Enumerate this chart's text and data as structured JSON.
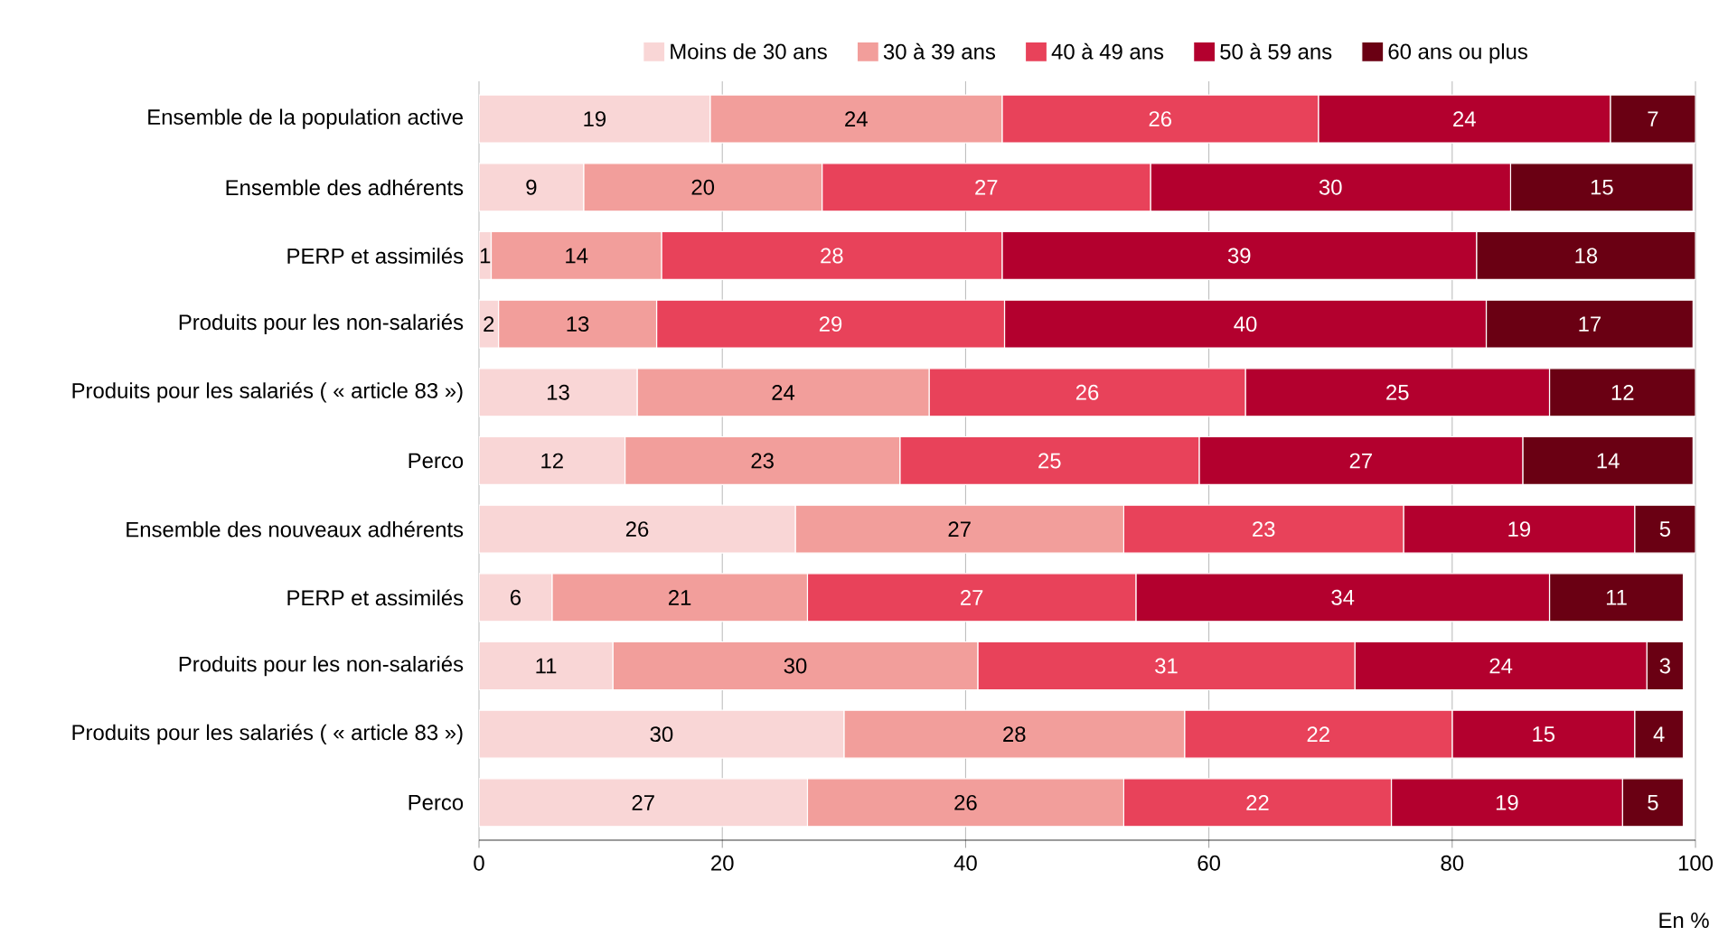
{
  "chart_data": {
    "type": "bar",
    "orientation": "horizontal",
    "stacked": true,
    "grid": "x",
    "legend": "top",
    "categories": [
      "Ensemble de la population active",
      "Ensemble des adhérents",
      "PERP et assimilés",
      "Produits pour les non-salariés",
      "Produits pour les salariés ( « article 83 »)",
      "Perco",
      "Ensemble des nouveaux adhérents",
      "PERP et assimilés",
      "Produits pour les non-salariés",
      "Produits pour les salariés ( « article 83 »)",
      "Perco"
    ],
    "series": [
      {
        "name": "Moins de 30 ans",
        "color": "#f9d6d6",
        "values": [
          19,
          8.6,
          1,
          1.6,
          13,
          12,
          26,
          6,
          11,
          30,
          27
        ],
        "value_labels": [
          "19",
          "9",
          "1",
          "2",
          "13",
          "12",
          "26",
          "6",
          "11",
          "30",
          "27"
        ]
      },
      {
        "name": "30 à 39 ans",
        "color": "#f29e9b",
        "values": [
          24,
          19.6,
          14,
          13,
          24,
          22.6,
          27,
          21,
          30,
          28,
          26
        ],
        "value_labels": [
          "24",
          "20",
          "14",
          "13",
          "24",
          "23",
          "27",
          "21",
          "30",
          "28",
          "26"
        ]
      },
      {
        "name": "40 à 49 ans",
        "color": "#e8425a",
        "values": [
          26,
          27,
          28,
          28.6,
          26,
          24.6,
          23,
          27,
          31,
          22,
          22
        ],
        "value_labels": [
          "26",
          "27",
          "28",
          "29",
          "26",
          "25",
          "23",
          "27",
          "31",
          "22",
          "22"
        ]
      },
      {
        "name": "50 à 59 ans",
        "color": "#b3002e",
        "values": [
          24,
          29.6,
          39,
          39.6,
          25,
          26.6,
          19,
          34,
          24,
          15,
          19
        ],
        "value_labels": [
          "24",
          "30",
          "39",
          "40",
          "25",
          "27",
          "19",
          "34",
          "24",
          "15",
          "19"
        ]
      },
      {
        "name": "60 ans ou plus",
        "color": "#6a0013",
        "values": [
          7,
          15,
          18,
          17,
          12,
          14,
          5,
          11,
          3,
          4,
          5
        ],
        "value_labels": [
          "7",
          "15",
          "18",
          "17",
          "12",
          "14",
          "5",
          "11",
          "3",
          "4",
          "5"
        ]
      }
    ],
    "xlim": [
      0,
      100
    ],
    "xticks": [
      0,
      20,
      40,
      60,
      80,
      100
    ],
    "annotations": [
      "En %"
    ]
  }
}
